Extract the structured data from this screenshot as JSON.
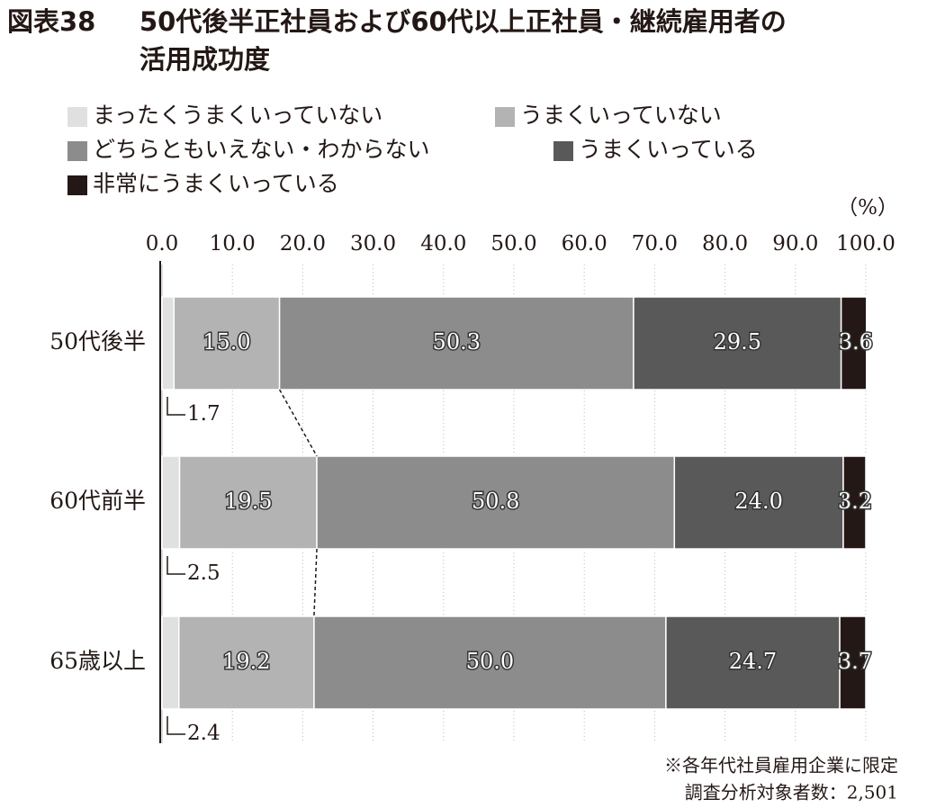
{
  "chart_data": {
    "type": "stacked_bar_horizontal",
    "figure_label": "図表38",
    "title": "50代後半正社員および60代以上正社員・継続雇用者の活用成功度",
    "x_unit": "（%）",
    "categories": [
      "50代後半",
      "60代前半",
      "65歳以上"
    ],
    "series": [
      {
        "name": "まったくうまくいっていない",
        "color": "#e0e0e0",
        "values": [
          1.7,
          2.5,
          2.4
        ],
        "value_labels": [
          "1.7",
          "2.5",
          "2.4"
        ]
      },
      {
        "name": "うまくいっていない",
        "color": "#b3b3b3",
        "values": [
          15.0,
          19.5,
          19.2
        ],
        "value_labels": [
          "15.0",
          "19.5",
          "19.2"
        ]
      },
      {
        "name": "どちらともいえない・わからない",
        "color": "#8c8c8c",
        "values": [
          50.3,
          50.8,
          50.0
        ],
        "value_labels": [
          "50.3",
          "50.8",
          "50.0"
        ]
      },
      {
        "name": "うまくいっている",
        "color": "#595959",
        "values": [
          29.5,
          24.0,
          24.7
        ],
        "value_labels": [
          "29.5",
          "24.0",
          "24.7"
        ]
      },
      {
        "name": "非常にうまくいっている",
        "color": "#231815",
        "values": [
          3.6,
          3.2,
          3.7
        ],
        "value_labels": [
          "3.6",
          "3.2",
          "3.7"
        ]
      }
    ],
    "xlim": [
      0,
      100
    ],
    "xticks": [
      {
        "value": 0,
        "label": "0.0"
      },
      {
        "value": 10,
        "label": "10.0"
      },
      {
        "value": 20,
        "label": "20.0"
      },
      {
        "value": 30,
        "label": "30.0"
      },
      {
        "value": 40,
        "label": "40.0"
      },
      {
        "value": 50,
        "label": "50.0"
      },
      {
        "value": 60,
        "label": "60.0"
      },
      {
        "value": 70,
        "label": "70.0"
      },
      {
        "value": 80,
        "label": "80.0"
      },
      {
        "value": 90,
        "label": "90.0"
      },
      {
        "value": 100,
        "label": "100.0"
      }
    ],
    "grid": true,
    "notes": [
      "※各年代社員雇用企業に限定",
      "調査分析対象者数：2,501"
    ]
  }
}
